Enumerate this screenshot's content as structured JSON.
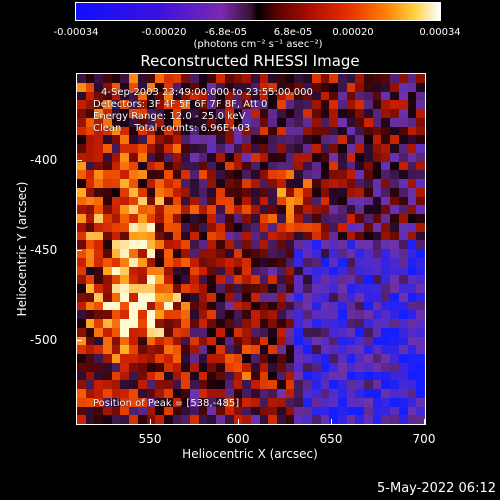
{
  "colorbar": {
    "ticks": [
      "-0.00034",
      "-0.00020",
      "-6.8e-05",
      "6.8e-05",
      "0.00020",
      "0.00034"
    ],
    "unit": "(photons cm⁻² s⁻¹ asec⁻²)"
  },
  "title": "Reconstructed RHESSI Image",
  "annotations": {
    "time_range": "4-Sep-2003 23:49:00.000 to 23:55:00.000",
    "detectors": "Detectors: 3F 4F 5F 6F 7F 8F, Att 0",
    "energy": "Energy Range: 12.0 - 25.0 keV",
    "clean": "Clean    Total counts: 6.96E+03",
    "peak": "Position of Peak = [538,-485]"
  },
  "x_axis": {
    "label": "Heliocentric X (arcsec)",
    "ticks": [
      "550",
      "600",
      "650",
      "700"
    ]
  },
  "y_axis": {
    "label": "Heliocentric Y (arcsec)",
    "ticks": [
      "-400",
      "-450",
      "-500"
    ]
  },
  "timestamp": "5-May-2022 06:12"
}
